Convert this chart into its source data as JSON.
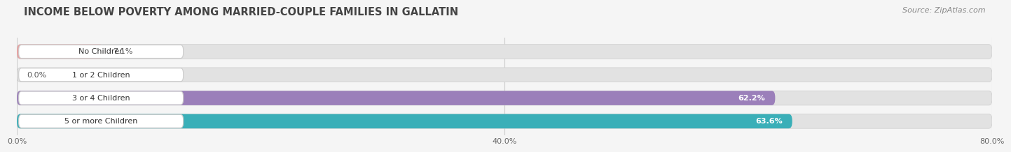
{
  "title": "INCOME BELOW POVERTY AMONG MARRIED-COUPLE FAMILIES IN GALLATIN",
  "source": "Source: ZipAtlas.com",
  "categories": [
    "No Children",
    "1 or 2 Children",
    "3 or 4 Children",
    "5 or more Children"
  ],
  "values": [
    7.1,
    0.0,
    62.2,
    63.6
  ],
  "bar_colors": [
    "#e8a0a0",
    "#a8b8d8",
    "#9b7fba",
    "#3aafb8"
  ],
  "label_colors": [
    "#555555",
    "#555555",
    "#ffffff",
    "#ffffff"
  ],
  "xlim": [
    0,
    80
  ],
  "xticks": [
    0.0,
    40.0,
    80.0
  ],
  "xtick_labels": [
    "0.0%",
    "40.0%",
    "80.0%"
  ],
  "background_color": "#f5f5f5",
  "bar_bg_color": "#e2e2e2",
  "title_fontsize": 10.5,
  "source_fontsize": 8,
  "bar_height": 0.62,
  "bar_label_fontsize": 8,
  "category_fontsize": 8,
  "tick_fontsize": 8,
  "value_threshold": 15
}
